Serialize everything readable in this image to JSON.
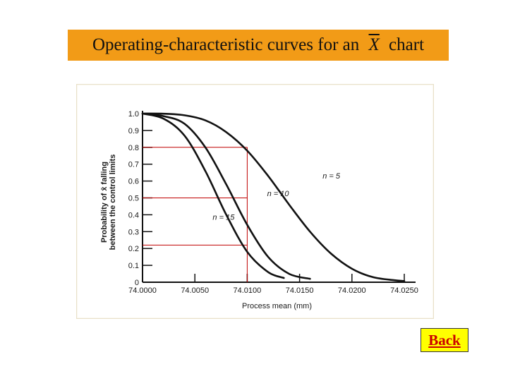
{
  "title": {
    "prefix": "Operating-characteristic curves for an ",
    "symbol": "X",
    "suffix": " chart"
  },
  "back_label": "Back",
  "colors": {
    "title_bg": "#f29b17",
    "button_bg": "#ffff00",
    "button_text": "#cc0000",
    "guide_lines": "#c00000",
    "curves": "#111111"
  },
  "chart_data": {
    "type": "line",
    "xlabel": "Process mean (mm)",
    "ylabel_lines": [
      "Probability of x̄ falling",
      "between the control limits"
    ],
    "xlim": [
      74.0,
      74.025
    ],
    "ylim": [
      0,
      1
    ],
    "x_ticks": [
      74.0,
      74.005,
      74.01,
      74.015,
      74.02,
      74.025
    ],
    "x_tick_labels": [
      "74.0000",
      "74.0050",
      "74.0100",
      "74.0150",
      "74.0200",
      "74.0250"
    ],
    "y_ticks": [
      0,
      0.1,
      0.2,
      0.3,
      0.4,
      0.5,
      0.6,
      0.7,
      0.8,
      0.9,
      1.0
    ],
    "y_tick_labels": [
      "0",
      "0.1",
      "0.2",
      "0.3",
      "0.4",
      "0.5",
      "0.6",
      "0.7",
      "0.8",
      "0.9",
      "1.0"
    ],
    "grid": false,
    "series": [
      {
        "name": "n = 5",
        "x": [
          74.0,
          74.002,
          74.004,
          74.006,
          74.008,
          74.01,
          74.012,
          74.014,
          74.016,
          74.018,
          74.02,
          74.022,
          74.024,
          74.025
        ],
        "y": [
          1.0,
          0.999,
          0.99,
          0.96,
          0.89,
          0.78,
          0.63,
          0.46,
          0.3,
          0.17,
          0.08,
          0.03,
          0.012,
          0.007
        ]
      },
      {
        "name": "n = 10",
        "x": [
          74.0,
          74.002,
          74.004,
          74.006,
          74.008,
          74.01,
          74.012,
          74.014,
          74.016
        ],
        "y": [
          1.0,
          0.985,
          0.94,
          0.8,
          0.58,
          0.34,
          0.15,
          0.05,
          0.02
        ]
      },
      {
        "name": "n = 15",
        "x": [
          74.0,
          74.002,
          74.004,
          74.006,
          74.008,
          74.01,
          74.012,
          74.0135
        ],
        "y": [
          1.0,
          0.97,
          0.87,
          0.66,
          0.4,
          0.18,
          0.06,
          0.025
        ]
      }
    ],
    "reference": {
      "x": 74.01,
      "y_levels": [
        0.8,
        0.5,
        0.22
      ]
    },
    "annotations": [
      {
        "text": "n = 5",
        "x": 74.0172,
        "y": 0.615
      },
      {
        "text": "n = 10",
        "x": 74.0119,
        "y": 0.51
      },
      {
        "text": "n = 15",
        "x": 74.0067,
        "y": 0.37
      }
    ]
  }
}
